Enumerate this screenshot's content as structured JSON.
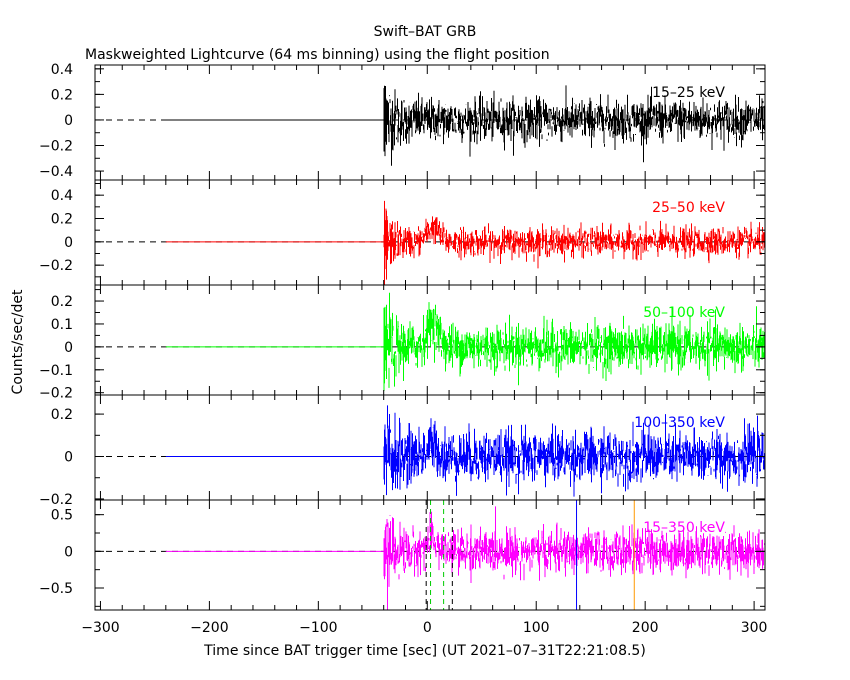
{
  "title": "Swift–BAT GRB",
  "subtitle": "Maskweighted Lightcurve (64 ms binning) using the flight position",
  "ylabel": "Counts/sec/det",
  "xlabel": "Time since BAT trigger time [sec] (UT 2021–07–31T22:21:08.5)",
  "chart_data": {
    "type": "line",
    "x": {
      "range": [
        -305,
        310
      ],
      "ticks": [
        -300,
        -200,
        -100,
        0,
        100,
        200,
        300
      ],
      "tick_labels": [
        "−300",
        "−200",
        "−100",
        "0",
        "100",
        "200",
        "300"
      ]
    },
    "panels": [
      {
        "id": "p1",
        "band": "15–25 keV",
        "color": "#000000",
        "ylim": [
          -0.47,
          0.43
        ],
        "yticks": [
          -0.4,
          -0.2,
          0,
          0.2,
          0.4
        ],
        "ytick_labels": [
          "−0.4",
          "−0.2",
          "0",
          "0.2",
          "0.4"
        ],
        "flat_from": -240,
        "data_start": -40,
        "noise_sigma": 0.075,
        "spike_amp": 0.35
      },
      {
        "id": "p2",
        "band": "25–50 keV",
        "color": "#ff0000",
        "ylim": [
          -0.37,
          0.53
        ],
        "yticks": [
          -0.2,
          0,
          0.2,
          0.4
        ],
        "ytick_labels": [
          "−0.2",
          "0",
          "0.2",
          "0.4"
        ],
        "flat_from": -240,
        "data_start": -40,
        "noise_sigma": 0.055,
        "spike_amp": 0.4,
        "bump": {
          "center": 5,
          "amp": 0.12
        }
      },
      {
        "id": "p3",
        "band": "50–100 keV",
        "color": "#00ff00",
        "ylim": [
          -0.21,
          0.27
        ],
        "yticks": [
          -0.2,
          -0.1,
          0,
          0.1,
          0.2
        ],
        "ytick_labels": [
          "−0.2",
          "−0.1",
          "0",
          "0.1",
          "0.2"
        ],
        "flat_from": -240,
        "data_start": -40,
        "noise_sigma": 0.045,
        "spike_amp": 0.2,
        "bump": {
          "center": 5,
          "amp": 0.1
        }
      },
      {
        "id": "p4",
        "band": "100–350 keV",
        "color": "#0000ff",
        "ylim": [
          -0.205,
          0.29
        ],
        "yticks": [
          -0.2,
          0,
          0.2
        ],
        "ytick_labels": [
          "−0.2",
          "0",
          "0.2"
        ],
        "flat_from": -240,
        "data_start": -40,
        "noise_sigma": 0.055,
        "spike_amp": 0.22,
        "bump": {
          "center": 5,
          "amp": 0.05
        }
      },
      {
        "id": "p5",
        "band": "15–350 keV",
        "color": "#ff00ff",
        "ylim": [
          -0.8,
          0.7
        ],
        "yticks": [
          -0.5,
          0,
          0.5
        ],
        "ytick_labels": [
          "−0.5",
          "0",
          "0.5"
        ],
        "flat_from": -240,
        "data_start": -40,
        "noise_sigma": 0.13,
        "spike_amp": 0.5,
        "bump": {
          "center": 5,
          "amp": 0.15
        }
      }
    ],
    "markers": [
      {
        "x": -1,
        "color": "#000000",
        "style": "dashed",
        "panel": "p5"
      },
      {
        "x": 23,
        "color": "#000000",
        "style": "dashed",
        "panel": "p5"
      },
      {
        "x": 3,
        "color": "#00cc00",
        "style": "dashed",
        "panel": "p5"
      },
      {
        "x": 15,
        "color": "#00cc00",
        "style": "dashed",
        "panel": "p5"
      },
      {
        "x": 137,
        "color": "#0000ff",
        "style": "solid",
        "panel": "p5"
      },
      {
        "x": 190,
        "color": "#ff9900",
        "style": "solid",
        "panel": "p5"
      }
    ],
    "zero_line": {
      "style": "dashed",
      "color": "#000000"
    },
    "grid": false
  }
}
